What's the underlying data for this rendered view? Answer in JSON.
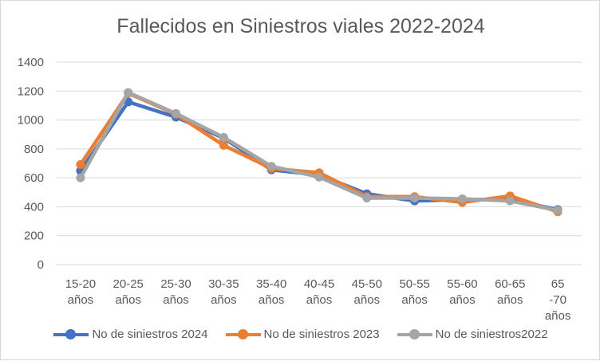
{
  "chart_data": {
    "type": "line",
    "title": "Fallecidos en Siniestros viales 2022-2024",
    "categories": [
      "15-20 años",
      "20-25 años",
      "25-30 años",
      "30-35 años",
      "35-40 años",
      "40-45 años",
      "45-50 años",
      "50-55 años",
      "55-60 años",
      "60-65 años",
      "65 -70 años"
    ],
    "ylim": [
      0,
      1400
    ],
    "yticks": [
      "0",
      "200",
      "400",
      "600",
      "800",
      "1000",
      "1200",
      "1400"
    ],
    "grid": true,
    "legend": "bottom",
    "series": [
      {
        "name": "No de siniestros 2024",
        "color": "#4472c4",
        "values": [
          648,
          1125,
          1020,
          875,
          655,
          620,
          490,
          440,
          450,
          450,
          380
        ]
      },
      {
        "name": "No de siniestros 2023",
        "color": "#ed7d31",
        "values": [
          692,
          1185,
          1040,
          825,
          665,
          635,
          470,
          470,
          430,
          475,
          365
        ]
      },
      {
        "name": "No de siniestros2022",
        "color": "#a5a5a5",
        "values": [
          600,
          1190,
          1045,
          880,
          680,
          605,
          460,
          460,
          455,
          440,
          375
        ]
      }
    ]
  }
}
